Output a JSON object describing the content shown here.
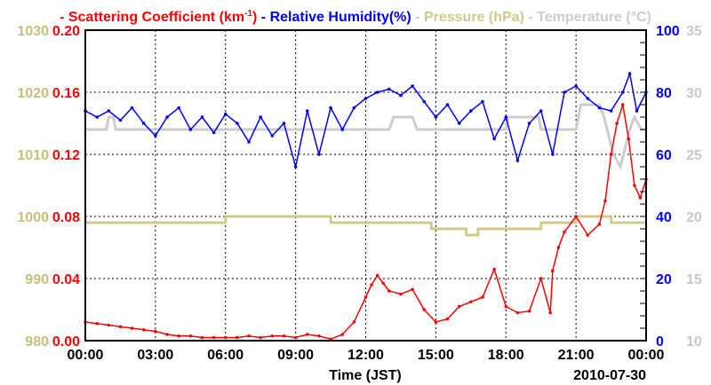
{
  "chart_data": {
    "type": "line",
    "legend": [
      {
        "label": "Scattering Coefficient (km",
        "sup": "-1",
        "suffix": ")",
        "color": "#ff0000"
      },
      {
        "label": "Relative Humidity(%)",
        "color": "#0000ff"
      },
      {
        "label": "Pressure (hPa)",
        "color": "#d2c88c"
      },
      {
        "label": "Temperature (°C)",
        "color": "#cccccc"
      }
    ],
    "legend_placement": "top",
    "xlabel": "Time (JST)",
    "date_label": "2010-07-30",
    "xlim": [
      0,
      24
    ],
    "x_ticks": [
      "00:00",
      "03:00",
      "06:00",
      "09:00",
      "12:00",
      "15:00",
      "18:00",
      "21:00",
      "00:00"
    ],
    "y_axes": {
      "scattering": {
        "range": [
          0,
          0.2
        ],
        "ticks": [
          "0.00",
          "0.04",
          "0.08",
          "0.12",
          "0.16",
          "0.20"
        ],
        "color": "#ff0000"
      },
      "pressure": {
        "range": [
          980,
          1030
        ],
        "ticks": [
          "980",
          "990",
          "1000",
          "1010",
          "1020",
          "1030"
        ],
        "color": "#c8be78"
      },
      "humidity": {
        "range": [
          0,
          100
        ],
        "ticks": [
          "0",
          "20",
          "40",
          "60",
          "80",
          "100"
        ],
        "color": "#0000ff"
      },
      "temperature": {
        "range": [
          10,
          35
        ],
        "ticks": [
          "10",
          "15",
          "20",
          "25",
          "30",
          "35"
        ],
        "color": "#c8c8c8"
      }
    },
    "grid": true,
    "series": [
      {
        "name": "Scattering Coefficient",
        "axis": "scattering",
        "color": "#ff0000",
        "x": [
          0,
          0.5,
          1,
          1.5,
          2,
          2.5,
          3,
          3.5,
          4,
          4.5,
          5,
          5.5,
          6,
          6.5,
          7,
          7.5,
          8,
          8.5,
          9,
          9.5,
          10,
          10.5,
          11,
          11.5,
          12,
          12.25,
          12.5,
          12.75,
          13,
          13.5,
          14,
          14.5,
          15,
          15.5,
          16,
          16.5,
          17,
          17.5,
          18,
          18.5,
          19,
          19.5,
          19.9,
          20,
          20.25,
          20.5,
          21,
          21.5,
          22,
          22.25,
          22.5,
          22.75,
          23,
          23.25,
          23.5,
          23.75,
          24
        ],
        "values": [
          0.012,
          0.011,
          0.01,
          0.009,
          0.008,
          0.007,
          0.006,
          0.004,
          0.003,
          0.003,
          0.002,
          0.002,
          0.002,
          0.002,
          0.003,
          0.002,
          0.003,
          0.003,
          0.002,
          0.004,
          0.003,
          0.001,
          0.004,
          0.012,
          0.028,
          0.036,
          0.042,
          0.037,
          0.032,
          0.03,
          0.033,
          0.02,
          0.012,
          0.014,
          0.022,
          0.025,
          0.028,
          0.046,
          0.022,
          0.018,
          0.019,
          0.04,
          0.018,
          0.045,
          0.06,
          0.07,
          0.08,
          0.068,
          0.075,
          0.09,
          0.12,
          0.14,
          0.152,
          0.13,
          0.1,
          0.092,
          0.104
        ]
      },
      {
        "name": "Relative Humidity",
        "axis": "humidity",
        "color": "#0000ff",
        "x": [
          0,
          0.5,
          1,
          1.5,
          2,
          2.5,
          3,
          3.5,
          4,
          4.5,
          5,
          5.5,
          6,
          6.5,
          7,
          7.5,
          8,
          8.5,
          9,
          9.5,
          10,
          10.5,
          11,
          11.5,
          12,
          12.5,
          13,
          13.5,
          14,
          14.5,
          15,
          15.5,
          16,
          16.5,
          17,
          17.5,
          18,
          18.5,
          19,
          19.5,
          20,
          20.5,
          21,
          21.5,
          22,
          22.5,
          23,
          23.3,
          23.6,
          24
        ],
        "values": [
          74,
          72,
          74,
          71,
          75,
          70,
          66,
          72,
          75,
          68,
          72,
          67,
          73,
          70,
          64,
          72,
          66,
          70,
          56,
          74,
          60,
          75,
          68,
          75,
          78,
          80,
          81,
          79,
          82,
          77,
          72,
          76,
          70,
          74,
          77,
          65,
          72,
          58,
          70,
          74,
          60,
          80,
          82,
          78,
          75,
          74,
          80,
          86,
          74,
          80
        ]
      },
      {
        "name": "Pressure",
        "axis": "pressure",
        "color": "#d2c88c",
        "x": [
          0,
          6,
          6.01,
          10.5,
          10.51,
          14.8,
          14.81,
          16.3,
          16.31,
          16.8,
          16.81,
          19.5,
          19.51,
          21,
          21.01,
          22.5,
          22.51,
          23,
          23.01,
          24
        ],
        "values": [
          999,
          999,
          1000,
          1000,
          999,
          999,
          998,
          998,
          997,
          997,
          998,
          998,
          999,
          999,
          1000,
          1000,
          999,
          999,
          999,
          999
        ]
      },
      {
        "name": "Temperature",
        "axis": "temperature",
        "color": "#cccccc",
        "x": [
          0,
          0.9,
          1,
          1.2,
          1.3,
          13,
          13.2,
          14,
          14.2,
          18,
          18.1,
          19.4,
          19.5,
          21,
          21.2,
          22,
          22.2,
          22.6,
          22.9,
          23.3,
          23.5,
          23.8,
          24
        ],
        "values": [
          27,
          27,
          28,
          28,
          27,
          27,
          28,
          28,
          27,
          27,
          28,
          28,
          27,
          27,
          29,
          29,
          28,
          25,
          24,
          27,
          28,
          27,
          27
        ]
      }
    ]
  }
}
